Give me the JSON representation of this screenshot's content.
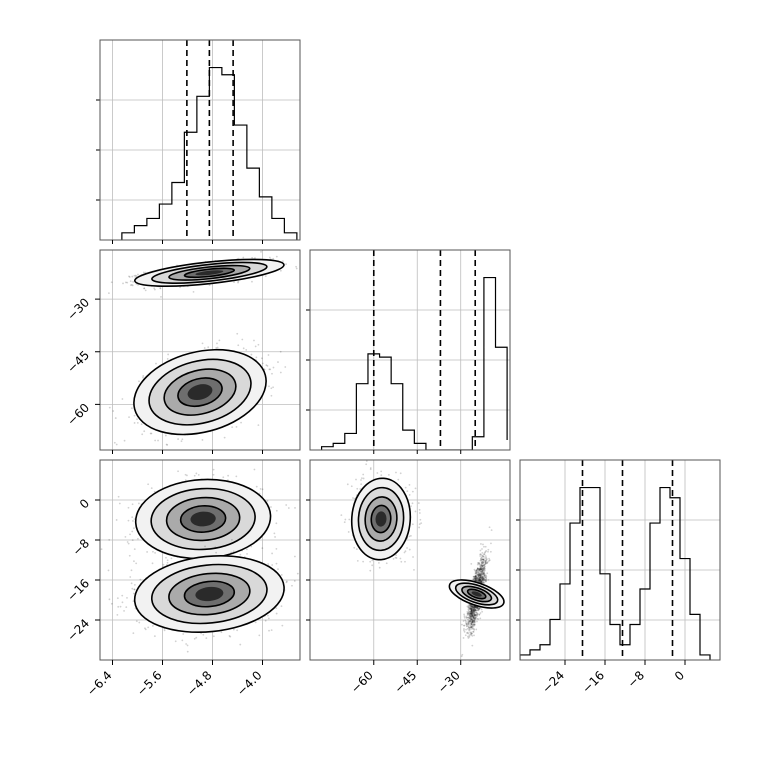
{
  "chart_data": {
    "type": "corner",
    "parameters": 3,
    "background_color": "#ffffff",
    "grid": true,
    "histograms": [
      {
        "param": 0,
        "bins": [
          -6.25,
          -6.05,
          -5.85,
          -5.65,
          -5.45,
          -5.25,
          -5.05,
          -4.85,
          -4.65,
          -4.45,
          -4.25,
          -4.05,
          -3.85,
          -3.65,
          -3.45
        ],
        "counts": [
          1,
          2,
          3,
          5,
          8,
          15,
          20,
          24,
          23,
          16,
          10,
          6,
          3,
          1,
          0
        ],
        "quantiles": [
          -5.21,
          -4.85,
          -4.47
        ]
      },
      {
        "param": 1,
        "bins": [
          -78,
          -74,
          -70,
          -66,
          -62,
          -58,
          -54,
          -50,
          -46,
          -42,
          -38,
          -34,
          -30,
          -26,
          -22,
          -18,
          -14
        ],
        "counts": [
          1,
          2,
          5,
          20,
          29,
          28,
          20,
          6,
          2,
          0,
          0,
          0,
          0,
          4,
          52,
          31,
          3
        ],
        "quantiles": [
          -60,
          -37,
          -25
        ]
      },
      {
        "param": 2,
        "bins": [
          -33,
          -31,
          -29,
          -27,
          -25,
          -23,
          -21,
          -19,
          -17,
          -15,
          -13,
          -11,
          -9,
          -7,
          -5,
          -3,
          -1,
          1,
          3,
          5
        ],
        "counts": [
          1,
          2,
          3,
          8,
          15,
          27,
          34,
          34,
          17,
          7,
          3,
          7,
          14,
          27,
          34,
          32,
          20,
          9,
          1
        ],
        "quantiles": [
          -20.5,
          -12.5,
          -2.5
        ]
      }
    ],
    "scatter_panels": [
      {
        "x_param": 0,
        "y_param": 1,
        "clusters": [
          {
            "mean": [
              -4.85,
              -22.5
            ],
            "sd": [
              0.5,
              1.6
            ],
            "rho": 0.6
          },
          {
            "mean": [
              -5.0,
              -56.5
            ],
            "sd": [
              0.45,
              5.2
            ],
            "rho": 0.4
          }
        ]
      },
      {
        "x_param": 0,
        "y_param": 2,
        "clusters": [
          {
            "mean": [
              -4.95,
              -3.8
            ],
            "sd": [
              0.45,
              3.3
            ],
            "rho": 0.1
          },
          {
            "mean": [
              -4.85,
              -18.8
            ],
            "sd": [
              0.5,
              3.2
            ],
            "rho": 0.2
          }
        ]
      },
      {
        "x_param": 1,
        "y_param": 2,
        "clusters": [
          {
            "mean": [
              -57.5,
              -3.8
            ],
            "sd": [
              4.2,
              3.4
            ],
            "rho": -0.05
          },
          {
            "mean": [
              -24.5,
              -18.8
            ],
            "sd": [
              1.6,
              3.6
            ],
            "rho": 0.75
          }
        ]
      }
    ],
    "axes": {
      "x0": {
        "range": [
          -6.6,
          -3.4
        ],
        "tick_labels": [
          "−6.4",
          "−5.6",
          "−4.8",
          "−4.0"
        ],
        "tick_values": [
          -6.4,
          -5.6,
          -4.8,
          -4.0
        ]
      },
      "x1": {
        "range": [
          -82,
          -13
        ],
        "tick_labels": [
          "−60",
          "−45",
          "−30"
        ],
        "tick_values": [
          -60,
          -45,
          -30
        ]
      },
      "x2": {
        "range": [
          -33,
          7
        ],
        "tick_labels": [
          "−24",
          "−16",
          "−8",
          "0"
        ],
        "tick_values": [
          -24,
          -16,
          -8,
          0
        ]
      },
      "y1": {
        "range": [
          -73,
          -16
        ],
        "tick_labels": [
          "−30",
          "−45",
          "−60"
        ],
        "tick_values": [
          -30,
          -45,
          -60
        ]
      },
      "y2": {
        "range": [
          -32,
          8
        ],
        "tick_labels": [
          "0",
          "−8",
          "−16",
          "−24"
        ],
        "tick_values": [
          0,
          -8,
          -16,
          -24
        ]
      }
    }
  }
}
